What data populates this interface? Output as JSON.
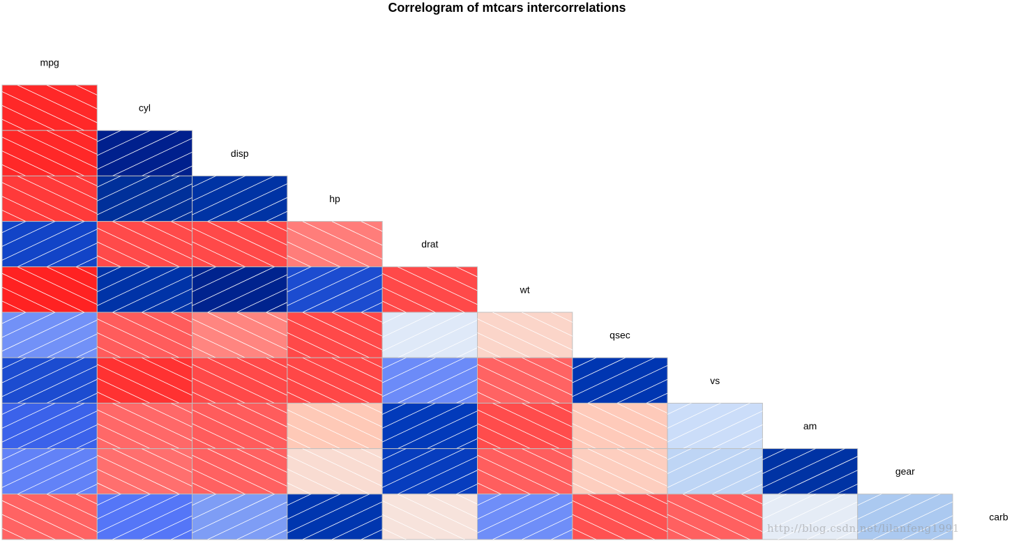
{
  "chart_data": {
    "type": "heatmap",
    "title": "Correlogram of mtcars intercorrelations",
    "variables": [
      "mpg",
      "cyl",
      "disp",
      "hp",
      "drat",
      "wt",
      "qsec",
      "vs",
      "am",
      "gear",
      "carb"
    ],
    "lower_triangle": true,
    "panel": "shade",
    "scale": [
      -1,
      1
    ],
    "colors": {
      "positive": "#00007F",
      "negative": "#FF0000",
      "neutral": "#F2F2F2",
      "hatch": "#ffffff",
      "border": "#bfbfbf"
    },
    "values": [
      [
        1,
        -0.85,
        -0.85,
        -0.78,
        0.68,
        -0.87,
        0.42,
        0.66,
        0.6,
        0.48,
        -0.55
      ],
      [
        -0.85,
        1,
        0.9,
        0.83,
        -0.7,
        0.78,
        -0.59,
        -0.81,
        -0.52,
        -0.49,
        0.53
      ],
      [
        -0.85,
        0.9,
        1,
        0.79,
        -0.71,
        0.89,
        -0.43,
        -0.71,
        -0.59,
        -0.56,
        0.39
      ],
      [
        -0.78,
        0.83,
        0.79,
        1,
        -0.45,
        0.66,
        -0.71,
        -0.72,
        -0.24,
        -0.13,
        0.75
      ],
      [
        0.68,
        -0.7,
        -0.71,
        -0.45,
        1,
        -0.71,
        0.09,
        0.44,
        0.71,
        0.7,
        -0.09
      ],
      [
        -0.87,
        0.78,
        0.89,
        0.66,
        -0.71,
        1,
        -0.17,
        -0.55,
        -0.69,
        -0.58,
        0.43
      ],
      [
        0.42,
        -0.59,
        -0.43,
        -0.71,
        0.09,
        -0.17,
        1,
        0.74,
        -0.23,
        -0.21,
        -0.66
      ],
      [
        0.66,
        -0.81,
        -0.71,
        -0.72,
        0.44,
        -0.55,
        0.74,
        1,
        0.17,
        0.21,
        -0.57
      ],
      [
        0.6,
        -0.52,
        -0.59,
        -0.24,
        0.71,
        -0.69,
        -0.23,
        0.17,
        1,
        0.79,
        0.06
      ],
      [
        0.48,
        -0.49,
        -0.56,
        -0.13,
        0.7,
        -0.58,
        -0.21,
        0.21,
        0.79,
        1,
        0.27
      ],
      [
        -0.55,
        0.53,
        0.39,
        0.75,
        -0.09,
        0.43,
        -0.66,
        -0.57,
        0.06,
        0.27,
        1
      ]
    ]
  },
  "watermark": "http://blog.csdn.net/lilanfeng1991"
}
